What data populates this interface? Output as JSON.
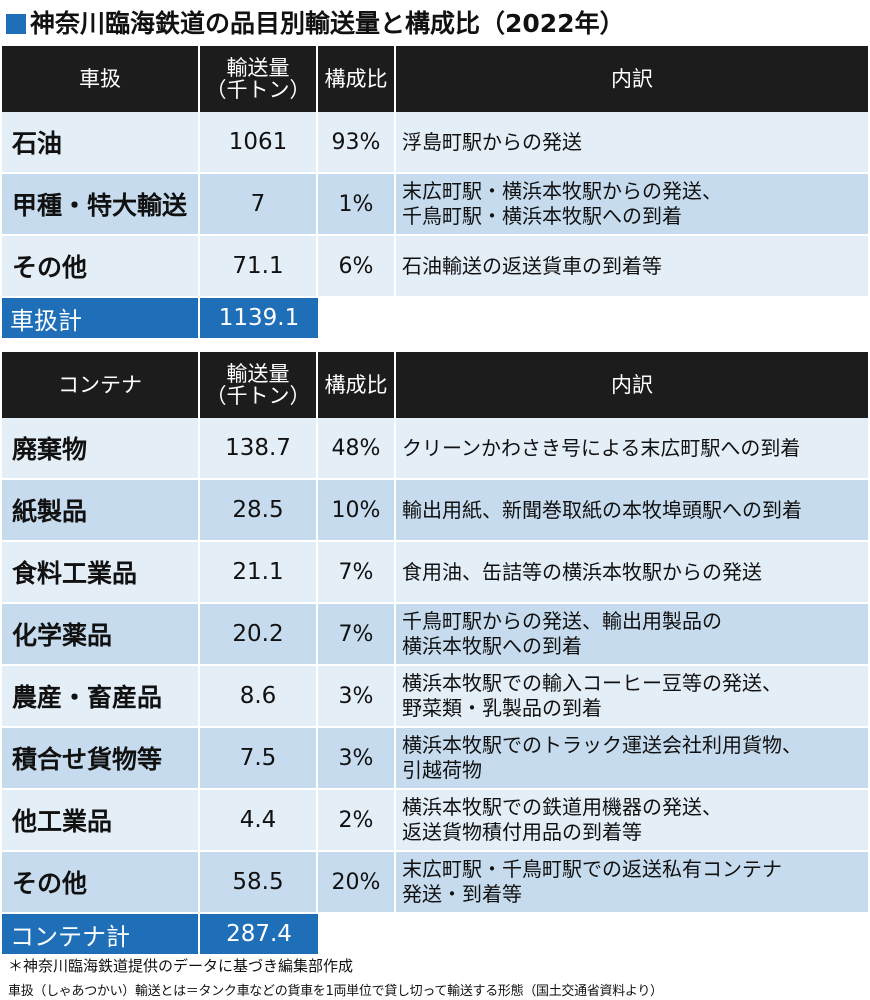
{
  "title": "神奈川臨海鉄道の品目別輸送量と構成比（2022年）",
  "table1": {
    "headers": [
      "車扱",
      "輸送量\n（千トン）",
      "構成比",
      "内訳"
    ],
    "rows": [
      {
        "item": "石油",
        "volume": "1061",
        "ratio": "93%",
        "detail": "浮島町駅からの発送"
      },
      {
        "item": "甲種・特大輸送",
        "volume": "7",
        "ratio": "1%",
        "detail": "末広町駅・横浜本牧駅からの発送、\n千鳥町駅・横浜本牧駅への到着"
      },
      {
        "item": "その他",
        "volume": "71.1",
        "ratio": "6%",
        "detail": "石油輸送の返送貨車の到着等"
      }
    ],
    "total_label": "車扱計",
    "total_value": "1139.1"
  },
  "table2": {
    "headers": [
      "コンテナ",
      "輸送量\n（千トン）",
      "構成比",
      "内訳"
    ],
    "rows": [
      {
        "item": "廃棄物",
        "volume": "138.7",
        "ratio": "48%",
        "detail": "クリーンかわさき号による末広町駅への到着"
      },
      {
        "item": "紙製品",
        "volume": "28.5",
        "ratio": "10%",
        "detail": "輸出用紙、新聞巻取紙の本牧埠頭駅への到着"
      },
      {
        "item": "食料工業品",
        "volume": "21.1",
        "ratio": "7%",
        "detail": "食用油、缶詰等の横浜本牧駅からの発送"
      },
      {
        "item": "化学薬品",
        "volume": "20.2",
        "ratio": "7%",
        "detail": "千鳥町駅からの発送、輸出用製品の\n横浜本牧駅への到着"
      },
      {
        "item": "農産・畜産品",
        "volume": "8.6",
        "ratio": "3%",
        "detail": "横浜本牧駅での輸入コーヒー豆等の発送、\n野菜類・乳製品の到着"
      },
      {
        "item": "積合せ貨物等",
        "volume": "7.5",
        "ratio": "3%",
        "detail": "横浜本牧駅でのトラック運送会社利用貨物、\n引越荷物"
      },
      {
        "item": "他工業品",
        "volume": "4.4",
        "ratio": "2%",
        "detail": "横浜本牧駅での鉄道用機器の発送、\n返送貨物積付用品の到着等"
      },
      {
        "item": "その他",
        "volume": "58.5",
        "ratio": "20%",
        "detail": "末広町駅・千鳥町駅での返送私有コンテナ\n発送・到着等"
      }
    ],
    "total_label": "コンテナ計",
    "total_value": "287.4"
  },
  "notes": [
    "＊神奈川臨海鉄道提供のデータに基づき編集部作成",
    "車扱（しゃあつかい）輸送とは＝タンク車などの貨車を1両単位で貸し切って輸送する形態（国土交通省資料より）"
  ],
  "colors": {
    "header_bg": "#1c1c1c",
    "row_light": "#e4eef7",
    "row_dark": "#c6dcee",
    "total_bg": "#1e6fb8"
  },
  "chart_data": {
    "type": "table",
    "title": "神奈川臨海鉄道の品目別輸送量と構成比（2022年）",
    "tables": [
      {
        "name": "車扱",
        "columns": [
          "車扱",
          "輸送量（千トン）",
          "構成比",
          "内訳"
        ],
        "rows": [
          [
            "石油",
            1061,
            "93%",
            "浮島町駅からの発送"
          ],
          [
            "甲種・特大輸送",
            7,
            "1%",
            "末広町駅・横浜本牧駅からの発送、千鳥町駅・横浜本牧駅への到着"
          ],
          [
            "その他",
            71.1,
            "6%",
            "石油輸送の返送貨車の到着等"
          ]
        ],
        "total": [
          "車扱計",
          1139.1
        ]
      },
      {
        "name": "コンテナ",
        "columns": [
          "コンテナ",
          "輸送量（千トン）",
          "構成比",
          "内訳"
        ],
        "rows": [
          [
            "廃棄物",
            138.7,
            "48%",
            "クリーンかわさき号による末広町駅への到着"
          ],
          [
            "紙製品",
            28.5,
            "10%",
            "輸出用紙、新聞巻取紙の本牧埠頭駅への到着"
          ],
          [
            "食料工業品",
            21.1,
            "7%",
            "食用油、缶詰等の横浜本牧駅からの発送"
          ],
          [
            "化学薬品",
            20.2,
            "7%",
            "千鳥町駅からの発送、輸出用製品の横浜本牧駅への到着"
          ],
          [
            "農産・畜産品",
            8.6,
            "3%",
            "横浜本牧駅での輸入コーヒー豆等の発送、野菜類・乳製品の到着"
          ],
          [
            "積合せ貨物等",
            7.5,
            "3%",
            "横浜本牧駅でのトラック運送会社利用貨物、引越荷物"
          ],
          [
            "他工業品",
            4.4,
            "2%",
            "横浜本牧駅での鉄道用機器の発送、返送貨物積付用品の到着等"
          ],
          [
            "その他",
            58.5,
            "20%",
            "末広町駅・千鳥町駅での返送私有コンテナ発送・到着等"
          ]
        ],
        "total": [
          "コンテナ計",
          287.4
        ]
      }
    ]
  }
}
